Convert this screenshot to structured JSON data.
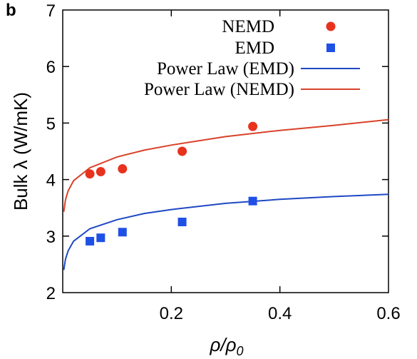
{
  "panel_label": "b",
  "colors": {
    "nemd": "#e8321e",
    "emd": "#1f50e6",
    "fit_emd": "#1f48c4",
    "fit_nemd": "#d8422a"
  },
  "chart_data": {
    "type": "scatter",
    "xlabel": "ρ/ρ",
    "xlabel_sub": "0",
    "ylabel": "Bulk λ (W/mK)",
    "xlim": [
      0.0,
      0.6
    ],
    "ylim": [
      2,
      7
    ],
    "x_ticks": [
      0.2,
      0.4,
      0.6
    ],
    "x_tick_labels": [
      "0.2",
      "0.4",
      "0.6"
    ],
    "y_ticks": [
      2,
      3,
      4,
      5,
      6,
      7
    ],
    "y_tick_labels": [
      "2",
      "3",
      "4",
      "5",
      "6",
      "7"
    ],
    "grid": false,
    "legend_position": "top-right",
    "series": [
      {
        "name": "NEMD",
        "kind": "points",
        "marker": "circle",
        "color": "#e8321e",
        "x": [
          0.05,
          0.07,
          0.11,
          0.22,
          0.35
        ],
        "y": [
          4.1,
          4.14,
          4.19,
          4.5,
          4.94
        ]
      },
      {
        "name": "EMD",
        "kind": "points",
        "marker": "square",
        "color": "#1f50e6",
        "x": [
          0.05,
          0.07,
          0.11,
          0.22,
          0.35
        ],
        "y": [
          2.91,
          2.97,
          3.07,
          3.25,
          3.62
        ]
      },
      {
        "name": "Power Law (EMD)",
        "kind": "line",
        "color": "#1f48c4",
        "x": [
          0.002,
          0.005,
          0.01,
          0.02,
          0.05,
          0.1,
          0.15,
          0.2,
          0.3,
          0.4,
          0.5,
          0.6
        ],
        "y": [
          2.4,
          2.59,
          2.74,
          2.91,
          3.13,
          3.29,
          3.4,
          3.47,
          3.58,
          3.65,
          3.7,
          3.74
        ]
      },
      {
        "name": "Power Law (NEMD)",
        "kind": "line",
        "color": "#d8422a",
        "x": [
          0.002,
          0.005,
          0.01,
          0.02,
          0.05,
          0.1,
          0.15,
          0.2,
          0.3,
          0.4,
          0.5,
          0.6
        ],
        "y": [
          3.43,
          3.64,
          3.8,
          3.98,
          4.21,
          4.4,
          4.52,
          4.61,
          4.76,
          4.87,
          4.96,
          5.06
        ]
      }
    ]
  }
}
